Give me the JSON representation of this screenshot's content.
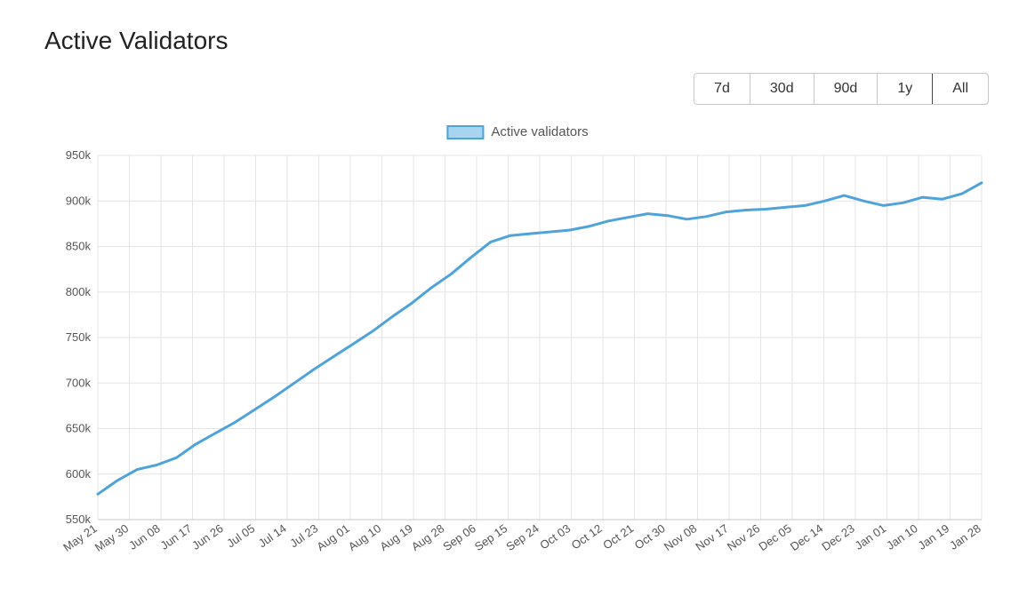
{
  "title": "Active Validators",
  "range_buttons": [
    "7d",
    "30d",
    "90d",
    "1y",
    "All"
  ],
  "active_range_index": 4,
  "legend": {
    "label": "Active validators",
    "swatch_stroke": "#4fa3d9",
    "swatch_fill": "#a7d4ef"
  },
  "chart": {
    "type": "line",
    "line_color": "#4fa3d9",
    "line_width": 3,
    "grid_color": "#e5e5e5",
    "axis_color": "#c7c7c7",
    "background_color": "#ffffff",
    "tick_font_color": "#555555",
    "tick_font_size": 13,
    "ylim": [
      550,
      950
    ],
    "ytick_step": 50,
    "ytick_suffix": "k",
    "yticks": [
      550,
      600,
      650,
      700,
      750,
      800,
      850,
      900,
      950
    ],
    "x_labels": [
      "May 21",
      "May 30",
      "Jun 08",
      "Jun 17",
      "Jun 26",
      "Jul 05",
      "Jul 14",
      "Jul 23",
      "Aug 01",
      "Aug 10",
      "Aug 19",
      "Aug 28",
      "Sep 06",
      "Sep 15",
      "Sep 24",
      "Oct 03",
      "Oct 12",
      "Oct 21",
      "Oct 30",
      "Nov 08",
      "Nov 17",
      "Nov 26",
      "Dec 05",
      "Dec 14",
      "Dec 23",
      "Jan 01",
      "Jan 10",
      "Jan 19",
      "Jan 28"
    ],
    "x_label_rotation_deg": 35,
    "values": [
      578,
      593,
      605,
      610,
      618,
      633,
      645,
      657,
      671,
      685,
      700,
      715,
      729,
      743,
      757,
      773,
      788,
      805,
      820,
      838,
      855,
      862,
      864,
      866,
      868,
      872,
      878,
      882,
      886,
      884,
      880,
      883,
      888,
      890,
      891,
      893,
      895,
      900,
      906,
      900,
      895,
      898,
      904,
      902,
      908,
      920
    ]
  }
}
